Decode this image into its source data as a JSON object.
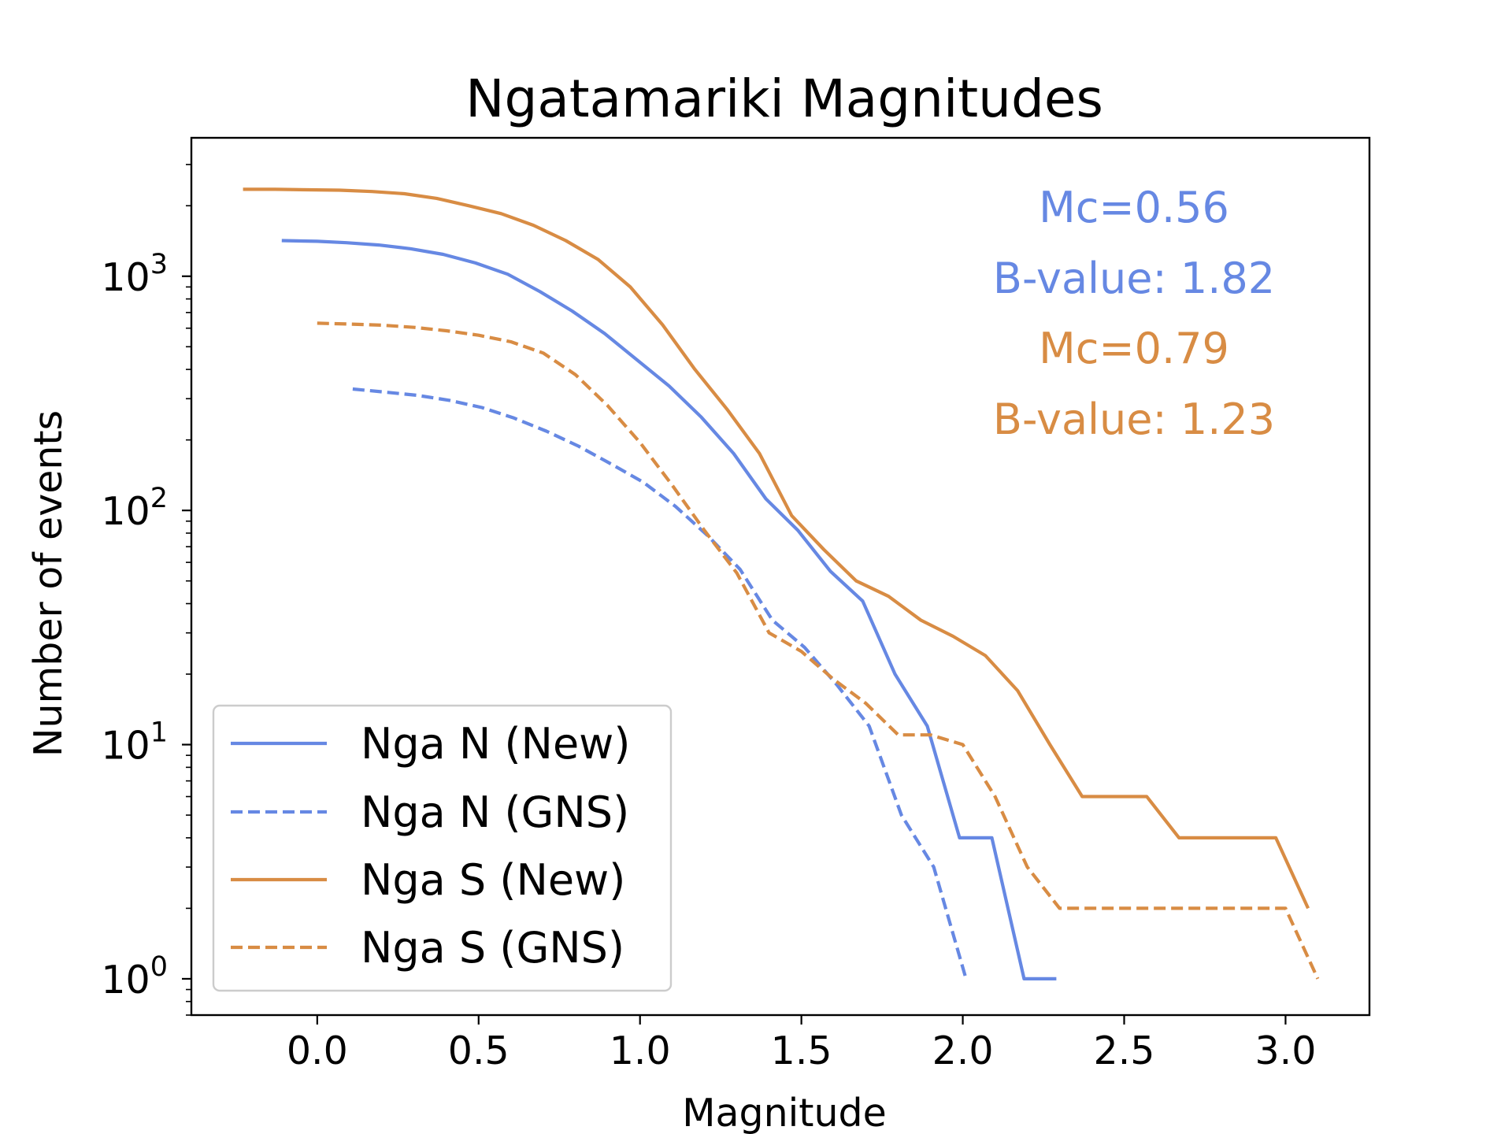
{
  "chart_data": {
    "type": "line",
    "title": "Ngatamariki Magnitudes",
    "xlabel": "Magnitude",
    "ylabel": "Number of events",
    "xlim": [
      -0.39,
      3.26
    ],
    "ylim": [
      0.7,
      3900
    ],
    "yscale": "log",
    "x_ticks": [
      0.0,
      0.5,
      1.0,
      1.5,
      2.0,
      2.5,
      3.0
    ],
    "x_tick_labels": [
      "0.0",
      "0.5",
      "1.0",
      "1.5",
      "2.0",
      "2.5",
      "3.0"
    ],
    "y_ticks": [
      {
        "value": 1,
        "base": "10",
        "exp": "0"
      },
      {
        "value": 10,
        "base": "10",
        "exp": "1"
      },
      {
        "value": 100,
        "base": "10",
        "exp": "2"
      },
      {
        "value": 1000,
        "base": "10",
        "exp": "3"
      }
    ],
    "legend_position": "lower-left",
    "grid": false,
    "series": [
      {
        "name": "Nga N (New)",
        "color": "#6688e3",
        "style": "solid",
        "x": [
          -0.11,
          0.0,
          0.09,
          0.19,
          0.29,
          0.39,
          0.49,
          0.59,
          0.69,
          0.79,
          0.89,
          0.99,
          1.09,
          1.19,
          1.29,
          1.39,
          1.49,
          1.59,
          1.69,
          1.79,
          1.89,
          1.99,
          2.09,
          2.19,
          2.29
        ],
        "y": [
          1420,
          1410,
          1390,
          1360,
          1310,
          1240,
          1140,
          1020,
          860,
          710,
          570,
          440,
          340,
          250,
          175,
          112,
          82,
          55,
          41,
          20,
          12,
          4,
          4,
          1,
          1
        ]
      },
      {
        "name": "Nga N (GNS)",
        "color": "#6688e3",
        "style": "dashed",
        "x": [
          0.11,
          0.21,
          0.31,
          0.41,
          0.51,
          0.61,
          0.71,
          0.81,
          0.91,
          1.01,
          1.11,
          1.21,
          1.31,
          1.41,
          1.51,
          1.61,
          1.71,
          1.81,
          1.91,
          2.01
        ],
        "y": [
          330,
          320,
          310,
          295,
          275,
          248,
          218,
          188,
          158,
          132,
          104,
          78,
          56,
          34,
          26,
          18,
          12,
          5,
          3,
          1
        ]
      },
      {
        "name": "Nga S (New)",
        "color": "#d88c44",
        "style": "solid",
        "x": [
          -0.23,
          -0.13,
          -0.03,
          0.07,
          0.17,
          0.27,
          0.37,
          0.47,
          0.57,
          0.67,
          0.77,
          0.87,
          0.97,
          1.07,
          1.17,
          1.27,
          1.37,
          1.47,
          1.57,
          1.67,
          1.77,
          1.87,
          1.97,
          2.07,
          2.17,
          2.27,
          2.37,
          2.47,
          2.57,
          2.67,
          2.77,
          2.87,
          2.97,
          3.07
        ],
        "y": [
          2350,
          2350,
          2340,
          2330,
          2300,
          2250,
          2150,
          2000,
          1850,
          1650,
          1420,
          1180,
          900,
          620,
          400,
          270,
          175,
          95,
          68,
          50,
          43,
          34,
          29,
          24,
          17,
          10,
          6,
          6,
          6,
          4,
          4,
          4,
          4,
          2
        ]
      },
      {
        "name": "Nga S (GNS)",
        "color": "#d88c44",
        "style": "dashed",
        "x": [
          0.0,
          0.1,
          0.2,
          0.3,
          0.4,
          0.5,
          0.6,
          0.7,
          0.8,
          0.9,
          1.0,
          1.1,
          1.2,
          1.3,
          1.4,
          1.5,
          1.6,
          1.7,
          1.8,
          1.9,
          2.0,
          2.1,
          2.2,
          2.3,
          2.4,
          2.5,
          2.6,
          2.7,
          2.8,
          2.9,
          3.0,
          3.1
        ],
        "y": [
          630,
          625,
          618,
          605,
          585,
          560,
          525,
          470,
          380,
          280,
          195,
          128,
          82,
          54,
          30,
          25,
          19,
          15,
          11,
          11,
          10,
          6,
          3,
          2,
          2,
          2,
          2,
          2,
          2,
          2,
          2,
          1
        ]
      }
    ],
    "annotations": [
      {
        "text": "Mc=0.56",
        "color": "#6688e3"
      },
      {
        "text": "B-value: 1.82",
        "color": "#6688e3"
      },
      {
        "text": "Mc=0.79",
        "color": "#d88c44"
      },
      {
        "text": "B-value: 1.23",
        "color": "#d88c44"
      }
    ]
  }
}
